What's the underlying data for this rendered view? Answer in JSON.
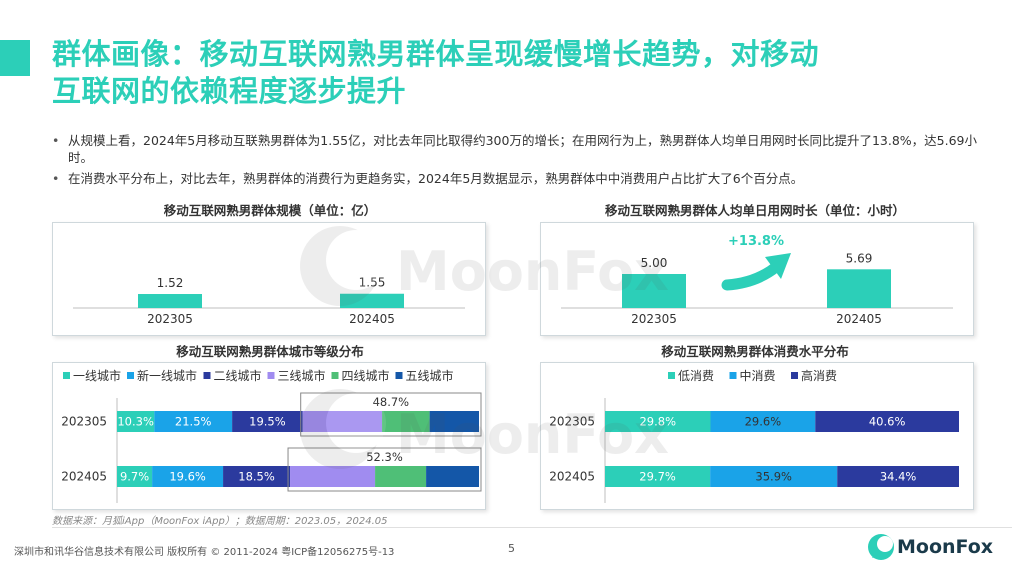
{
  "colors": {
    "accent": "#2ccfb8",
    "tier1": "#2ccfb8",
    "newtier1": "#1aa3e8",
    "tier2": "#2b3a9e",
    "tier3": "#a08cf0",
    "tier4": "#4fbf77",
    "tier5": "#1457a8",
    "low": "#2ccfb8",
    "mid": "#1aa3e8",
    "high": "#2b3a9e",
    "arrow": "#2ccfb8"
  },
  "header": {
    "title_line1": "群体画像：移动互联网熟男群体呈现缓慢增长趋势，对移动",
    "title_line2": "互联网的依赖程度逐步提升"
  },
  "bullets": [
    "从规模上看，2024年5月移动互联熟男群体为1.55亿，对比去年同比取得约300万的增长；在用网行为上，熟男群体人均单日用网时长同比提升了13.8%，达5.69小时。",
    "在消费水平分布上，对比去年，熟男群体的消费行为更趋务实，2024年5月数据显示，熟男群体中中消费用户占比扩大了6个百分点。"
  ],
  "chart_data": [
    {
      "type": "bar",
      "title": "移动互联网熟男群体规模（单位：亿）",
      "categories": [
        "202305",
        "202405"
      ],
      "values": [
        1.52,
        1.55
      ],
      "value_labels": [
        "1.52",
        "1.55"
      ]
    },
    {
      "type": "bar",
      "title": "移动互联网熟男群体人均单日用网时长（单位：小时）",
      "categories": [
        "202305",
        "202405"
      ],
      "values": [
        5.0,
        5.69
      ],
      "value_labels": [
        "5.00",
        "5.69"
      ],
      "annotation": "+13.8%"
    },
    {
      "type": "bar",
      "stacked": "horizontal-100%",
      "title": "移动互联网熟男群体城市等级分布",
      "categories": [
        "202305",
        "202405"
      ],
      "legend_position": "top",
      "series": [
        {
          "name": "一线城市",
          "values": [
            10.3,
            9.7
          ],
          "labels": [
            "10.3%",
            "9.7%"
          ]
        },
        {
          "name": "新一线城市",
          "values": [
            21.5,
            19.6
          ],
          "labels": [
            "21.5%",
            "19.6%"
          ]
        },
        {
          "name": "二线城市",
          "values": [
            19.5,
            18.5
          ],
          "labels": [
            "19.5%",
            "18.5%"
          ]
        },
        {
          "name": "三线城市",
          "values": [
            48.7,
            52.3
          ],
          "labels": [
            "",
            ""
          ]
        },
        {
          "name": "四线城市",
          "values": [
            0,
            0
          ],
          "labels": [
            "",
            ""
          ]
        },
        {
          "name": "五线城市",
          "values": [
            0,
            0
          ],
          "labels": [
            "",
            ""
          ]
        }
      ],
      "group_annotation": {
        "series": [
          "三线城市",
          "四线城市",
          "五线城市"
        ],
        "labels": [
          "48.7%",
          "52.3%"
        ]
      }
    },
    {
      "type": "bar",
      "stacked": "horizontal-100%",
      "title": "移动互联网熟男群体消费水平分布",
      "categories": [
        "202305",
        "202405"
      ],
      "legend_position": "top",
      "series": [
        {
          "name": "低消费",
          "values": [
            29.8,
            29.7
          ],
          "labels": [
            "29.8%",
            "29.7%"
          ]
        },
        {
          "name": "中消费",
          "values": [
            29.6,
            35.9
          ],
          "labels": [
            "29.6%",
            "35.9%"
          ]
        },
        {
          "name": "高消费",
          "values": [
            40.6,
            34.4
          ],
          "labels": [
            "40.6%",
            "34.4%"
          ]
        }
      ]
    }
  ],
  "source": "数据来源：月狐iApp（MoonFox iApp）；数据周期：2023.05，2024.05",
  "footer": "深圳市和讯华谷信息技术有限公司 版权所有 © 2011-2024 粤ICP备12056275号-13",
  "page_number": "5",
  "logo_text": "MoonFox",
  "watermark_text": "MoonFox"
}
